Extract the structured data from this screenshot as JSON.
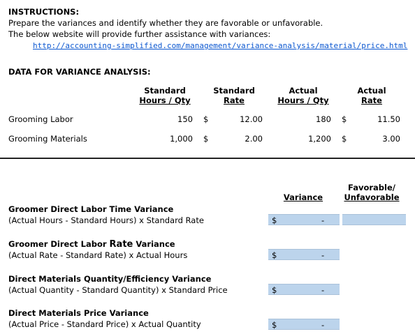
{
  "instructions": {
    "heading": "INSTRUCTIONS:",
    "line1": "Prepare the variances and identify whether they are favorable or unfavorable.",
    "line2": "The below website will provide further assistance with variances:",
    "link": "http://accounting-simplified.com/management/variance-analysis/material/price.html"
  },
  "data_section": {
    "heading": "DATA FOR VARIANCE ANALYSIS:",
    "columns": [
      {
        "line1": "Standard",
        "line2": "Hours / Qty"
      },
      {
        "line1": "Standard",
        "line2": "Rate"
      },
      {
        "line1": "Actual",
        "line2": "Hours / Qty"
      },
      {
        "line1": "Actual",
        "line2": "Rate"
      }
    ],
    "rows": [
      {
        "label": "Grooming Labor",
        "std_qty": "150",
        "std_rate_symbol": "$",
        "std_rate": "12.00",
        "act_qty": "180",
        "act_rate_symbol": "$",
        "act_rate": "11.50"
      },
      {
        "label": "Grooming Materials",
        "std_qty": "1,000",
        "std_rate_symbol": "$",
        "std_rate": "2.00",
        "act_qty": "1,200",
        "act_rate_symbol": "$",
        "act_rate": "3.00"
      }
    ]
  },
  "variance_section": {
    "col_variance": "Variance",
    "col_fav_line1": "Favorable/",
    "col_fav_line2": "Unfavorable",
    "items": [
      {
        "title_a": "Groomer Direct Labor Time Variance",
        "title_b": "",
        "formula": "(Actual Hours - Standard Hours) x Standard Rate",
        "symbol": "$",
        "value": "-",
        "status": ""
      },
      {
        "title_a": "Groomer Direct Labor ",
        "title_b": "Rate",
        "title_c": " Variance",
        "formula": "(Actual Rate - Standard Rate) x Actual Hours",
        "symbol": "$",
        "value": "-",
        "status": ""
      },
      {
        "title_a": "Direct Materials Quantity/Efficiency Variance",
        "title_b": "",
        "formula": "(Actual Quantity - Standard Quantity) x Standard Price",
        "symbol": "$",
        "value": "-",
        "status": ""
      },
      {
        "title_a": "Direct Materials Price Variance",
        "title_b": "",
        "formula": "(Actual Price - Standard Price) x Actual Quantity",
        "symbol": "$",
        "value": "-",
        "status": ""
      }
    ]
  },
  "colors": {
    "cell_fill": "#bcd4ec",
    "link": "#0b57d0"
  }
}
